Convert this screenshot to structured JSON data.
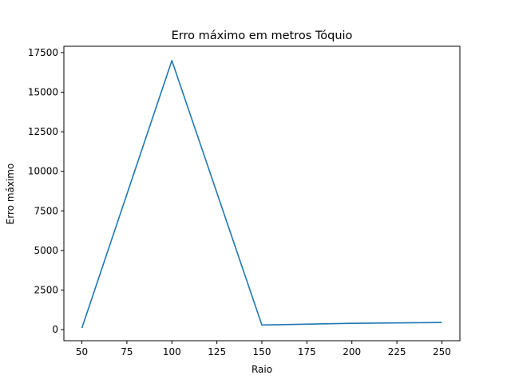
{
  "chart_data": {
    "type": "line",
    "title": "Erro máximo em metros Tóquio",
    "xlabel": "Raio",
    "ylabel": "Erro máximo",
    "xlim": [
      40,
      260
    ],
    "ylim": [
      -700,
      17900
    ],
    "x_ticks": [
      50,
      75,
      100,
      125,
      150,
      175,
      200,
      225,
      250
    ],
    "y_ticks": [
      0,
      2500,
      5000,
      7500,
      10000,
      12500,
      15000,
      17500
    ],
    "x_tick_labels": [
      "50",
      "75",
      "100",
      "125",
      "150",
      "175",
      "200",
      "225",
      "250"
    ],
    "y_tick_labels": [
      "0",
      "2500",
      "5000",
      "7500",
      "10000",
      "12500",
      "15000",
      "17500"
    ],
    "grid": false,
    "series": [
      {
        "color": "#1f77b4",
        "x": [
          50,
          100,
          150,
          200,
          250
        ],
        "y": [
          100,
          17000,
          290,
          400,
          450
        ]
      }
    ]
  }
}
